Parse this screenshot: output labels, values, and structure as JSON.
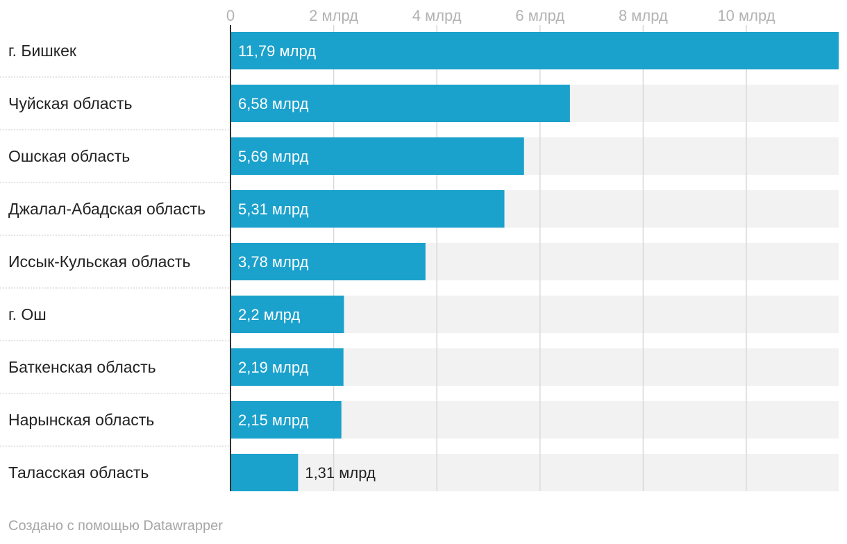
{
  "chart_data": {
    "type": "bar",
    "orientation": "horizontal",
    "categories": [
      "г. Бишкек",
      "Чуйская область",
      "Ошская область",
      "Джалал-Абадская область",
      "Иссык-Кульская область",
      "г. Ош",
      "Баткенская область",
      "Нарынская область",
      "Таласская область"
    ],
    "values": [
      11.79,
      6.58,
      5.69,
      5.31,
      3.78,
      2.2,
      2.19,
      2.15,
      1.31
    ],
    "value_labels": [
      "11,79 млрд",
      "6,58 млрд",
      "5,69 млрд",
      "5,31 млрд",
      "3,78 млрд",
      "2,2 млрд",
      "2,19 млрд",
      "2,15 млрд",
      "1,31 млрд"
    ],
    "xlim": [
      0,
      11.79
    ],
    "ticks": [
      0,
      2,
      4,
      6,
      8,
      10
    ],
    "tick_labels": [
      "0",
      "2 млрд",
      "4 млрд",
      "6 млрд",
      "8 млрд",
      "10 млрд"
    ],
    "title": "",
    "xlabel": "",
    "ylabel": "",
    "grid": true,
    "bar_color": "#1aa1cc",
    "background_color": "#f2f2f2"
  },
  "footer": {
    "credit": "Создано с помощью Datawrapper"
  }
}
